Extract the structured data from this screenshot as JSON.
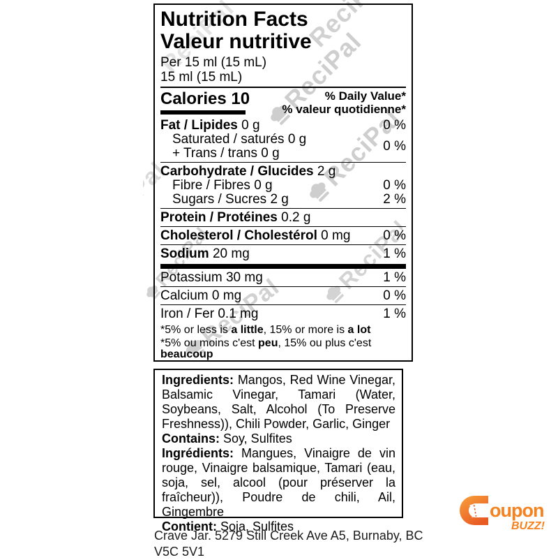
{
  "watermark": {
    "text": "ReciPal"
  },
  "nutrition_label": {
    "title_en": "Nutrition Facts",
    "title_fr": "Valeur nutritive",
    "serving_en": "Per 15 ml (15 mL)",
    "serving_fr": "15 ml (15 mL)",
    "calories": "Calories 10",
    "daily_value_en": "% Daily Value*",
    "daily_value_fr": "% valeur quotidienne*",
    "rows": [
      {
        "bold": "Fat / Lipides",
        "text": " 0 g",
        "pct": "0 %",
        "sep": "none"
      },
      {
        "sub2": [
          "Saturated / saturés 0 g",
          "+ Trans / trans 0 g"
        ],
        "pct": "0 %",
        "sep": "none"
      },
      {
        "bold": "Carbohydrate / Glucides",
        "text": " 2 g",
        "pct": "",
        "sep": "thin"
      },
      {
        "indent": true,
        "text": "Fibre / Fibres 0 g",
        "pct": "0 %",
        "sep": "none"
      },
      {
        "indent": true,
        "text": "Sugars / Sucres 2 g",
        "pct": "2 %",
        "sep": "none"
      },
      {
        "bold": "Protein / Protéines",
        "text": " 0.2 g",
        "pct": "",
        "sep": "thin"
      },
      {
        "bold": "Cholesterol / Cholestérol",
        "text": " 0 mg",
        "pct": "0 %",
        "sep": "thin"
      },
      {
        "bold": "Sodium",
        "text": " 20 mg",
        "pct": "1 %",
        "sep": "thin"
      },
      {
        "text": "Potassium 30 mg",
        "pct": "1 %",
        "sep": "thick"
      },
      {
        "text": "Calcium 0 mg",
        "pct": "0 %",
        "sep": "thin"
      },
      {
        "text": "Iron / Fer 0.1 mg",
        "pct": "1 %",
        "sep": "thin"
      }
    ],
    "footnote_en": [
      "*5% or less is ",
      "a little",
      ", 15% or more is ",
      "a lot"
    ],
    "footnote_fr": [
      "*5% ou moins c'est ",
      "peu",
      ", 15% ou plus c'est ",
      "beaucoup"
    ]
  },
  "ingredients_label": {
    "sections": [
      {
        "label": "Ingredients:",
        "text": " Mangos, Red Wine Vinegar, Balsamic Vinegar, Tamari (Water, Soybeans, Salt, Alcohol (To Preserve Freshness)), Chili Powder, Garlic, Ginger",
        "short": false
      },
      {
        "label": "Contains:",
        "text": " Soy, Sulfites",
        "short": true
      },
      {
        "label": "Ingrédients:",
        "text": " Mangues, Vinaigre de vin rouge, Vinaigre balsamique, Tamari (eau, soja, sel, alcool (pour préserver la fraîcheur)), Poudre de chili, Ail, Gingembre",
        "short": false
      },
      {
        "label": "Contient:",
        "text": " Soja, Sulfites",
        "short": true
      }
    ]
  },
  "footer": {
    "address_line1": "Crave Jar. 5279 Still Creek Ave A5, Burnaby, BC",
    "address_line2": "V5C 5V1"
  },
  "logo": {
    "word": "oupon",
    "tagline": "BUZZ!",
    "color_light": "#F9A13B",
    "color_mid": "#F58220",
    "color_dark": "#E85C24"
  }
}
